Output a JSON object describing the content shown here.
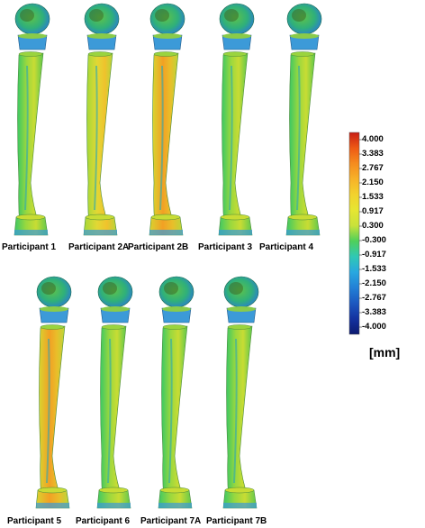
{
  "participants": [
    {
      "label": "Participant 1",
      "tone": "green"
    },
    {
      "label": "Participant 2A",
      "tone": "yellow"
    },
    {
      "label": "Participant 2B",
      "tone": "orange"
    },
    {
      "label": "Participant 3",
      "tone": "green"
    },
    {
      "label": "Participant 4",
      "tone": "green"
    },
    {
      "label": "Participant 5",
      "tone": "orange"
    },
    {
      "label": "Participant 6",
      "tone": "green"
    },
    {
      "label": "Participant 7A",
      "tone": "green"
    },
    {
      "label": "Participant 7B",
      "tone": "green"
    }
  ],
  "colorbar": {
    "ticks": [
      "4.000",
      "3.383",
      "2.767",
      "2.150",
      "1.533",
      "0.917",
      "0.300",
      "-0.300",
      "-0.917",
      "-1.533",
      "-2.150",
      "-2.767",
      "-3.383",
      "-4.000"
    ],
    "colors": [
      "#c81e14",
      "#ee5a14",
      "#f58c1e",
      "#f7b228",
      "#f2d22d",
      "#e6e632",
      "#c8e23a",
      "#4fd05a",
      "#30c8b4",
      "#28a8e0",
      "#2280d6",
      "#1c58c0",
      "#1432a0",
      "#0c1a70"
    ],
    "unit": "[mm]"
  }
}
